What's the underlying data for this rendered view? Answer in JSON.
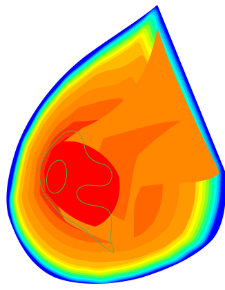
{
  "figure": {
    "type": "contour-map",
    "background": "#ffffff",
    "colormap": [
      "#0000ff",
      "#0044ff",
      "#0099ff",
      "#00ccff",
      "#00ffe6",
      "#00ffaa",
      "#33ff66",
      "#88ff22",
      "#ccff00",
      "#ffff00",
      "#ffdd00",
      "#ffbb00",
      "#ff9900",
      "#ff8800",
      "#ff6600",
      "#ff3300",
      "#ff0000"
    ],
    "outline_color": "#4caf50",
    "filled_levels": 17
  }
}
